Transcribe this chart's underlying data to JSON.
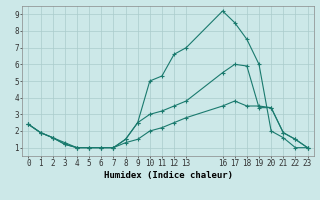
{
  "xlabel": "Humidex (Indice chaleur)",
  "background_color": "#cce8e8",
  "grid_color": "#aacccc",
  "line_color": "#1a7a6e",
  "xlim": [
    -0.5,
    23.5
  ],
  "ylim": [
    0.5,
    9.5
  ],
  "xticks": [
    0,
    1,
    2,
    3,
    4,
    5,
    6,
    7,
    8,
    9,
    10,
    11,
    12,
    13,
    16,
    17,
    18,
    19,
    20,
    21,
    22,
    23
  ],
  "yticks": [
    1,
    2,
    3,
    4,
    5,
    6,
    7,
    8,
    9
  ],
  "line1_x": [
    0,
    1,
    2,
    3,
    4,
    5,
    6,
    7,
    8,
    9,
    10,
    11,
    12,
    13,
    16,
    17,
    18,
    19,
    20,
    21,
    22,
    23
  ],
  "line1_y": [
    2.4,
    1.9,
    1.6,
    1.2,
    1.0,
    1.0,
    1.0,
    1.0,
    1.5,
    2.5,
    5.0,
    5.3,
    6.6,
    7.0,
    9.2,
    8.5,
    7.5,
    6.0,
    2.0,
    1.6,
    1.0,
    1.0
  ],
  "line2_x": [
    0,
    1,
    2,
    3,
    4,
    5,
    6,
    7,
    8,
    9,
    10,
    11,
    12,
    13,
    16,
    17,
    18,
    19,
    20,
    21,
    22,
    23
  ],
  "line2_y": [
    2.4,
    1.9,
    1.6,
    1.2,
    1.0,
    1.0,
    1.0,
    1.0,
    1.5,
    2.5,
    3.0,
    3.2,
    3.5,
    3.8,
    5.5,
    6.0,
    5.9,
    3.4,
    3.4,
    1.9,
    1.5,
    1.0
  ],
  "line3_x": [
    0,
    1,
    2,
    3,
    4,
    5,
    6,
    7,
    8,
    9,
    10,
    11,
    12,
    13,
    16,
    17,
    18,
    19,
    20,
    21,
    22,
    23
  ],
  "line3_y": [
    2.4,
    1.9,
    1.6,
    1.3,
    1.0,
    1.0,
    1.0,
    1.0,
    1.3,
    1.5,
    2.0,
    2.2,
    2.5,
    2.8,
    3.5,
    3.8,
    3.5,
    3.5,
    3.4,
    1.9,
    1.5,
    1.0
  ],
  "tick_fontsize": 5.5,
  "xlabel_fontsize": 6.5,
  "linewidth": 0.8,
  "markersize": 3.5
}
